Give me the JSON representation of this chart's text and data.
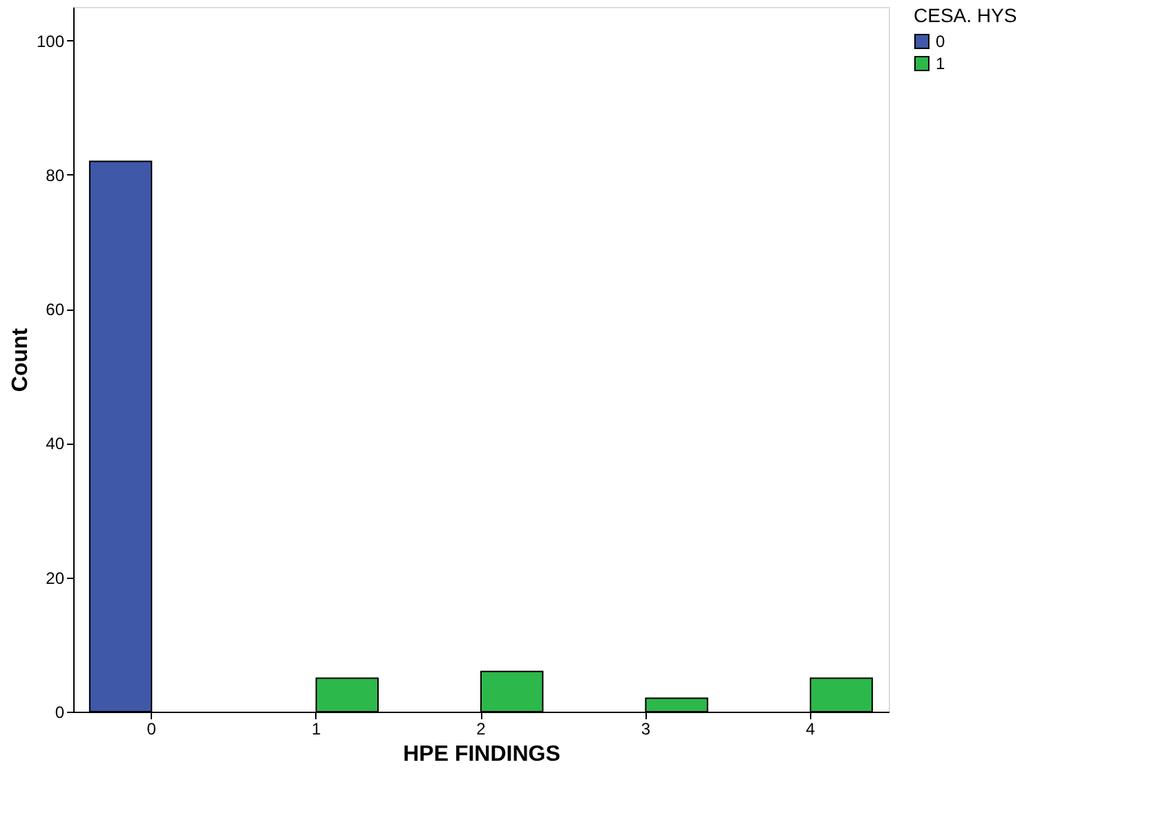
{
  "chart_data": {
    "type": "bar",
    "xlabel": "HPE FINDINGS",
    "ylabel": "Count",
    "legend_title": "CESA. HYS",
    "categories": [
      "0",
      "1",
      "2",
      "3",
      "4"
    ],
    "series": [
      {
        "name": "0",
        "color": "#3f58a8",
        "values": [
          82,
          null,
          null,
          null,
          null
        ]
      },
      {
        "name": "1",
        "color": "#2db84b",
        "values": [
          null,
          5,
          6,
          2,
          5
        ]
      }
    ],
    "ylim": [
      0,
      105
    ],
    "yticks": [
      0,
      20,
      40,
      60,
      80,
      100
    ],
    "grid": false,
    "legend": "top right"
  }
}
